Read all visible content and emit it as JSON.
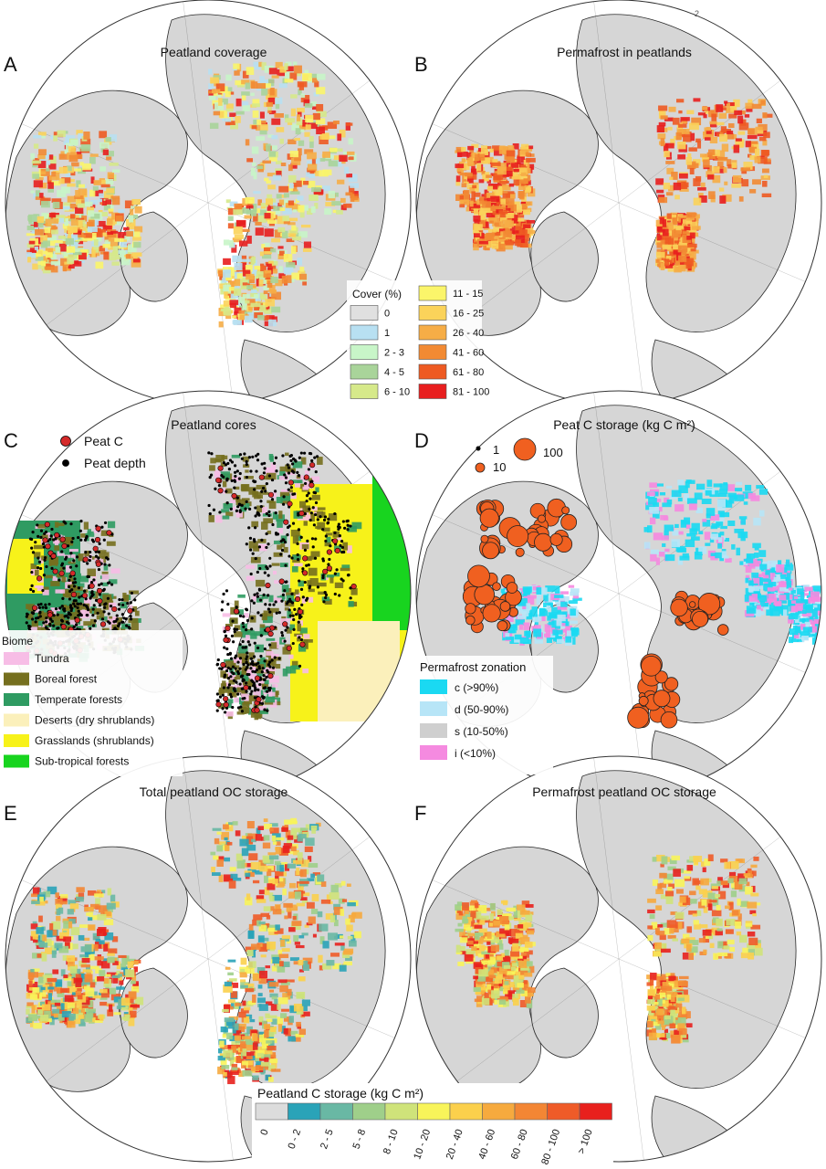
{
  "panels": [
    {
      "letter": "A",
      "title": "Peatland coverage"
    },
    {
      "letter": "B",
      "title": "Permafrost in peatlands"
    },
    {
      "letter": "C",
      "title": "Peatland cores"
    },
    {
      "letter": "D",
      "title": "Peat C storage (kg C m²)"
    },
    {
      "letter": "E",
      "title": "Total peatland OC storage"
    },
    {
      "letter": "F",
      "title": "Permafrost peatland OC storage"
    }
  ],
  "cover_legend": {
    "title": "Cover (%)",
    "classes": [
      {
        "label": "0",
        "color": "#e0e0e0"
      },
      {
        "label": "1",
        "color": "#b8e0f2"
      },
      {
        "label": "2 - 3",
        "color": "#c8f5c8"
      },
      {
        "label": "4 - 5",
        "color": "#a9d49a"
      },
      {
        "label": "6 - 10",
        "color": "#d6e98a"
      },
      {
        "label": "11 - 15",
        "color": "#fbf56a"
      },
      {
        "label": "16 - 25",
        "color": "#fbd35a"
      },
      {
        "label": "26 - 40",
        "color": "#f6ad46"
      },
      {
        "label": "41 - 60",
        "color": "#f28a33"
      },
      {
        "label": "61 - 80",
        "color": "#ee5a22"
      },
      {
        "label": "81 - 100",
        "color": "#e81e1e"
      }
    ]
  },
  "cores_legend": {
    "items": [
      {
        "label": "Peat C",
        "color": "#d42a2a"
      },
      {
        "label": "Peat depth",
        "color": "#000000"
      }
    ]
  },
  "biome_legend": {
    "title": "Biome",
    "items": [
      {
        "label": "Tundra",
        "color": "#f7bde6"
      },
      {
        "label": "Boreal forest",
        "color": "#756f1e"
      },
      {
        "label": "Temperate forests",
        "color": "#2f9b62"
      },
      {
        "label": "Deserts (dry shrublands)",
        "color": "#fbf0bb"
      },
      {
        "label": "Grasslands (shrublands)",
        "color": "#f7f21a"
      },
      {
        "label": "Sub-tropical forests",
        "color": "#18d41f"
      }
    ]
  },
  "storage_size_legend": {
    "items": [
      {
        "label": "1",
        "value": 1
      },
      {
        "label": "100",
        "value": 100
      },
      {
        "label": "10",
        "value": 10
      }
    ],
    "color": "#f06020"
  },
  "permafrost_legend": {
    "title": "Permafrost zonation",
    "items": [
      {
        "label": "c (>90%)",
        "color": "#1ad9f2"
      },
      {
        "label": "d (50-90%)",
        "color": "#b7e5f7"
      },
      {
        "label": "s (10-50%)",
        "color": "#cfcfcf"
      },
      {
        "label": "i (<10%)",
        "color": "#f58ae0"
      }
    ]
  },
  "carbon_legend": {
    "title": "Peatland C storage (kg C m²)",
    "classes": [
      {
        "label": "0",
        "color": "#dcdcdc"
      },
      {
        "label": "0 - 2",
        "color": "#2aa3b8"
      },
      {
        "label": "2 - 5",
        "color": "#69b8a4"
      },
      {
        "label": "5 - 8",
        "color": "#9fcf8a"
      },
      {
        "label": "8 - 10",
        "color": "#cfe37a"
      },
      {
        "label": "10 - 20",
        "color": "#f8f45a"
      },
      {
        "label": "20 - 40",
        "color": "#fbd04c"
      },
      {
        "label": "40 - 60",
        "color": "#f6aa3e"
      },
      {
        "label": "60 - 80",
        "color": "#f38634"
      },
      {
        "label": "80 - 100",
        "color": "#ef5b28"
      },
      {
        "label": "> 100",
        "color": "#e8201d"
      }
    ]
  },
  "map_colors": {
    "land": "#d6d6d6",
    "ocean": "#ffffff",
    "border": "#2a2a2a",
    "boundary": "#333333"
  },
  "stray_mark": "-2"
}
